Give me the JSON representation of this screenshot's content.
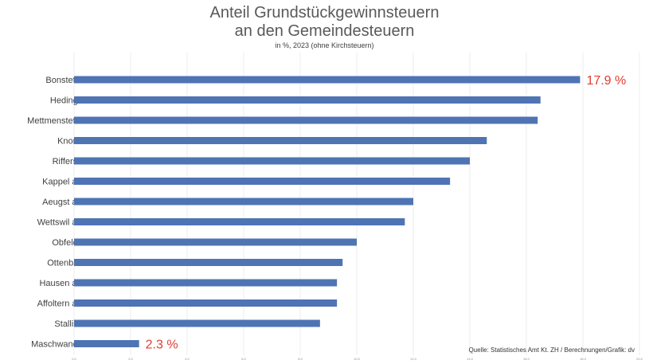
{
  "chart_data": {
    "type": "bar",
    "orientation": "horizontal",
    "title": "Anteil Grundstückgewinnsteuern",
    "title_line2": "an den Gemeindesteuern",
    "subtitle": "in %, 2023 (ohne Kirchsteuern)",
    "categories": [
      "Bonstetten",
      "Hedingen",
      "Mettmenstetten",
      "Knonau",
      "Rifferswil",
      "Kappel a.A.",
      "Aeugst a.A.",
      "Wettswil a.A.",
      "Obfelden",
      "Ottenbach",
      "Hausen a.A.",
      "Affoltern a.A.",
      "Stallikon",
      "Maschwanden"
    ],
    "values": [
      17.9,
      16.5,
      16.4,
      14.6,
      14.0,
      13.3,
      12.0,
      11.7,
      10.0,
      9.5,
      9.3,
      9.3,
      8.7,
      2.3
    ],
    "xlim": [
      0,
      20
    ],
    "xticks": [
      "0.0",
      "2.0",
      "4.0",
      "6.0",
      "8.0",
      "10.0",
      "12.0",
      "14.0",
      "16.0",
      "18.0",
      "20.0"
    ],
    "bar_color": "#4f74b4",
    "annotations": [
      {
        "category": "Bonstetten",
        "text": "17.9 %"
      },
      {
        "category": "Maschwanden",
        "text": "2.3 %"
      }
    ],
    "annotation_color": "#e03c31",
    "source": "Quelle: Statistisches Amt Kt. ZH / Berechnungen/Grafik: dv"
  }
}
